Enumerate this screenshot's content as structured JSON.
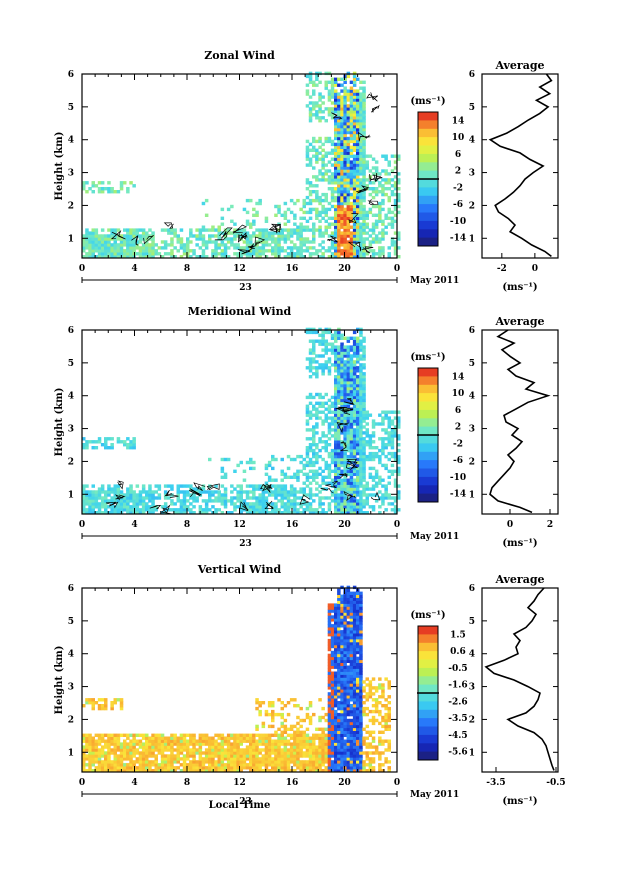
{
  "chart_data": [
    {
      "type": "heatmap",
      "title": "Zonal Wind",
      "ylabel": "Height (km)",
      "xlabel": "",
      "x_ticks": [
        "0",
        "4",
        "8",
        "12",
        "16",
        "20",
        "0"
      ],
      "y_ticks": [
        "1",
        "2",
        "3",
        "4",
        "5",
        "6"
      ],
      "date_label": "23",
      "month_label": "May 2011",
      "xlim": [
        0,
        24
      ],
      "ylim": [
        0.4,
        6.0
      ],
      "colorbar": {
        "unit": "(ms⁻¹)",
        "ticks": [
          "14",
          "10",
          "6",
          "2",
          "-2",
          "-6",
          "-10",
          "-14"
        ],
        "range": [
          -16,
          16
        ]
      },
      "average": {
        "title": "Average",
        "xlabel": "(ms⁻¹)",
        "x_ticks": [
          "-2",
          "0"
        ],
        "xlim": [
          -3.2,
          1.4
        ],
        "height": [
          0.45,
          0.6,
          0.8,
          1.0,
          1.2,
          1.4,
          1.6,
          1.8,
          2.0,
          2.2,
          2.4,
          2.6,
          2.8,
          3.0,
          3.2,
          3.4,
          3.6,
          3.8,
          4.0,
          4.2,
          4.4,
          4.6,
          4.8,
          5.0,
          5.2,
          5.4,
          5.6,
          5.8,
          6.0
        ],
        "value": [
          1.0,
          0.6,
          -0.2,
          -0.8,
          -1.5,
          -1.2,
          -1.6,
          -2.2,
          -2.4,
          -1.8,
          -1.3,
          -0.9,
          -0.6,
          -0.1,
          0.5,
          -0.3,
          -0.9,
          -2.1,
          -2.7,
          -1.7,
          -1.0,
          -0.4,
          0.3,
          0.8,
          0.1,
          0.9,
          0.3,
          1.0,
          0.7
        ]
      }
    },
    {
      "type": "heatmap",
      "title": "Meridional Wind",
      "ylabel": "Height (km)",
      "xlabel": "",
      "x_ticks": [
        "0",
        "4",
        "8",
        "12",
        "16",
        "20",
        "0"
      ],
      "y_ticks": [
        "1",
        "2",
        "3",
        "4",
        "5",
        "6"
      ],
      "date_label": "23",
      "month_label": "May 2011",
      "xlim": [
        0,
        24
      ],
      "ylim": [
        0.4,
        6.0
      ],
      "colorbar": {
        "unit": "(ms⁻¹)",
        "ticks": [
          "14",
          "10",
          "6",
          "2",
          "-2",
          "-6",
          "-10",
          "-14"
        ],
        "range": [
          -16,
          16
        ]
      },
      "average": {
        "title": "Average",
        "xlabel": "(ms⁻¹)",
        "x_ticks": [
          "0",
          "2"
        ],
        "xlim": [
          -1.4,
          2.4
        ],
        "height": [
          0.45,
          0.6,
          0.8,
          1.0,
          1.2,
          1.4,
          1.6,
          1.8,
          2.0,
          2.2,
          2.4,
          2.6,
          2.8,
          3.0,
          3.2,
          3.4,
          3.6,
          3.8,
          4.0,
          4.2,
          4.4,
          4.6,
          4.8,
          5.0,
          5.2,
          5.4,
          5.6,
          5.8,
          6.0
        ],
        "value": [
          1.1,
          0.5,
          -0.6,
          -1.0,
          -0.9,
          -0.6,
          -0.3,
          0.0,
          0.2,
          -0.1,
          0.3,
          0.6,
          0.1,
          0.4,
          -0.2,
          -0.3,
          0.3,
          0.9,
          1.9,
          0.8,
          1.2,
          0.3,
          -0.1,
          0.5,
          0.0,
          -0.4,
          0.2,
          -0.6,
          -0.1
        ]
      }
    },
    {
      "type": "heatmap",
      "title": "Vertical Wind",
      "ylabel": "Height (km)",
      "xlabel": "Local Time",
      "x_ticks": [
        "0",
        "4",
        "8",
        "12",
        "16",
        "20",
        "0"
      ],
      "y_ticks": [
        "1",
        "2",
        "3",
        "4",
        "5",
        "6"
      ],
      "date_label": "23",
      "month_label": "May 2011",
      "xlim": [
        0,
        24
      ],
      "ylim": [
        0.4,
        6.0
      ],
      "colorbar": {
        "unit": "(ms⁻¹)",
        "ticks": [
          "1.5",
          "0.6",
          "-0.5",
          "-1.6",
          "-2.6",
          "-3.5",
          "-4.5",
          "-5.6"
        ],
        "range": [
          -6.1,
          2.0
        ]
      },
      "average": {
        "title": "Average",
        "xlabel": "(ms⁻¹)",
        "x_ticks": [
          "-3.5",
          "-0.5"
        ],
        "xlim": [
          -4.2,
          -0.4
        ],
        "height": [
          0.45,
          0.6,
          0.8,
          1.0,
          1.2,
          1.4,
          1.6,
          1.8,
          2.0,
          2.2,
          2.4,
          2.6,
          2.8,
          3.0,
          3.2,
          3.4,
          3.6,
          3.8,
          4.0,
          4.2,
          4.4,
          4.6,
          4.8,
          5.0,
          5.2,
          5.4,
          5.6,
          5.8,
          6.0
        ],
        "value": [
          -0.6,
          -0.7,
          -0.8,
          -0.9,
          -1.0,
          -1.2,
          -1.6,
          -2.4,
          -2.9,
          -2.0,
          -1.6,
          -1.4,
          -1.3,
          -1.9,
          -2.6,
          -3.6,
          -4.0,
          -3.1,
          -2.4,
          -2.5,
          -2.3,
          -2.6,
          -2.0,
          -1.7,
          -1.5,
          -1.9,
          -1.6,
          -1.4,
          -1.1
        ]
      }
    }
  ]
}
